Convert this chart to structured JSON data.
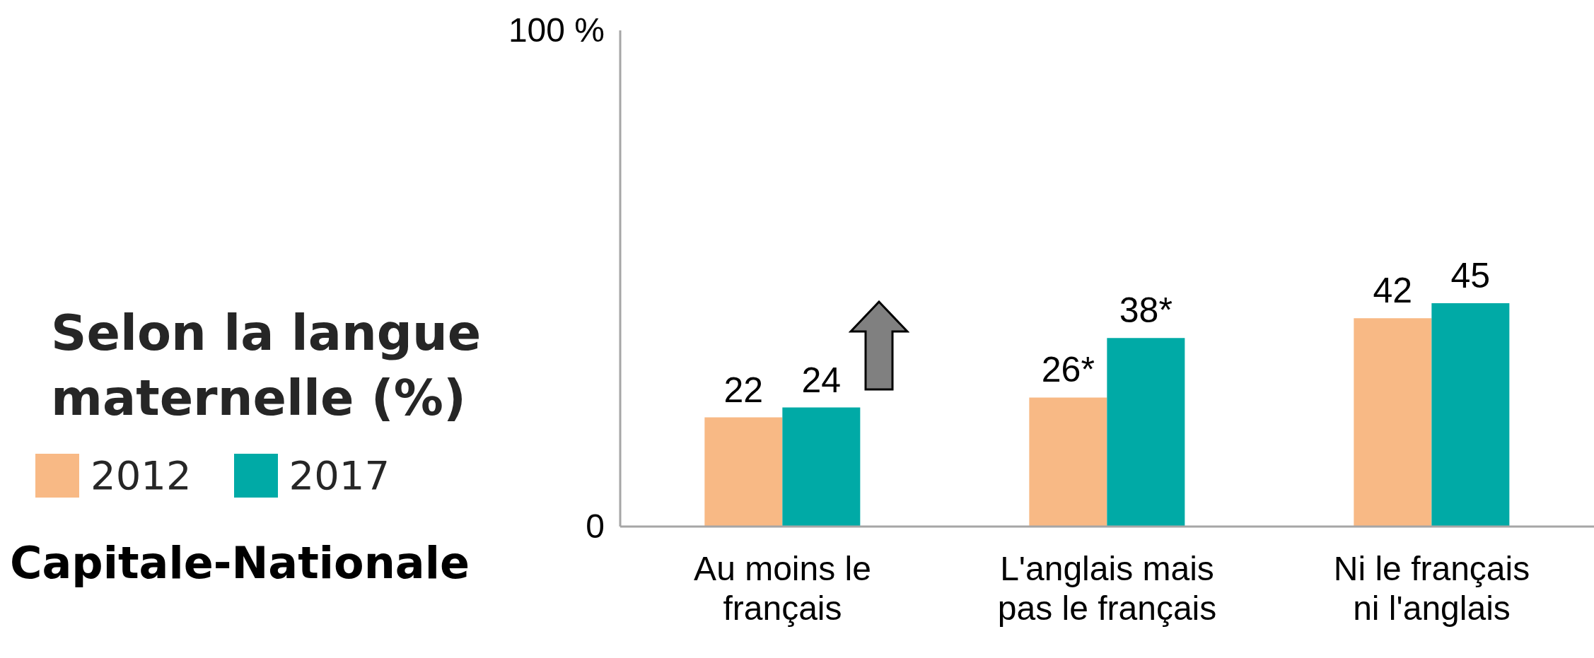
{
  "chart_data": {
    "type": "bar",
    "title": "Selon la langue maternelle (%)",
    "subtitle": "Capitale-Nationale",
    "categories": [
      "Au moins le français",
      "L'anglais mais pas le français",
      "Ni le français ni l'anglais"
    ],
    "series": [
      {
        "name": "2012",
        "color": "#f8b985",
        "values": [
          22,
          26,
          42
        ],
        "value_labels": [
          "22",
          "26*",
          "42"
        ]
      },
      {
        "name": "2017",
        "color": "#00aaa6",
        "values": [
          24,
          38,
          45
        ],
        "value_labels": [
          "24",
          "38*",
          "45"
        ]
      }
    ],
    "ylim": [
      0,
      100
    ],
    "yticks": [
      0,
      {
        "value": 100,
        "label": "100 %"
      }
    ],
    "grid": false,
    "legend": "left"
  }
}
